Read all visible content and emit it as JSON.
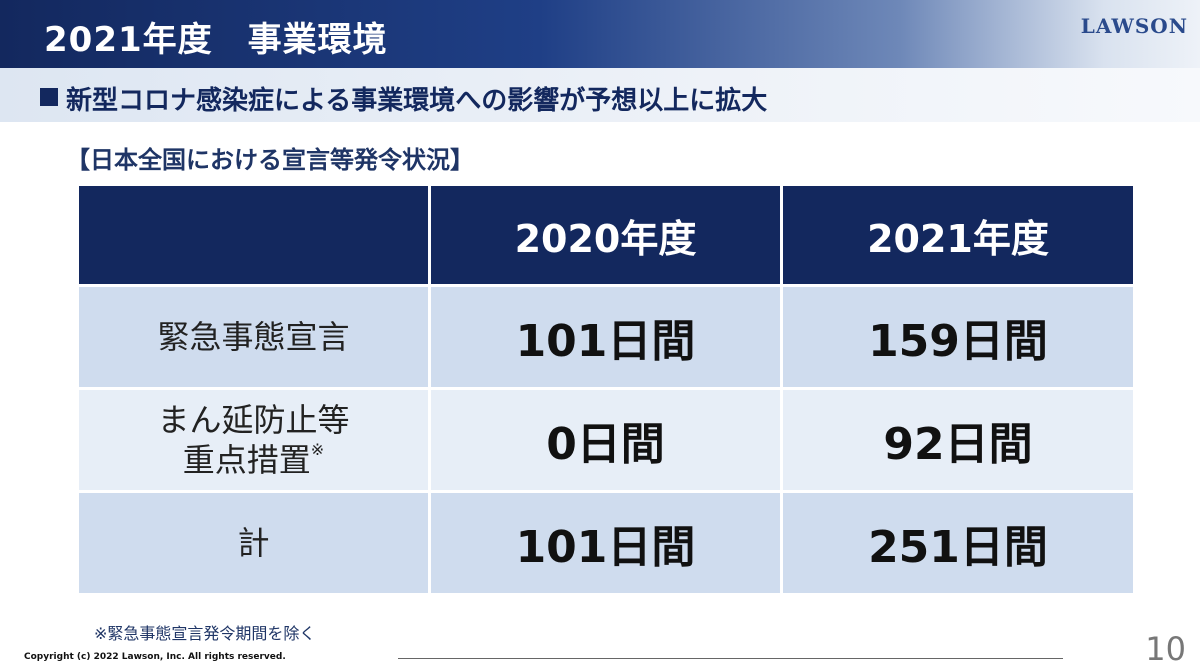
{
  "header": {
    "title": "2021年度　事業環境",
    "logo": "LAWSON"
  },
  "subheader": {
    "title": "新型コロナ感染症による事業環境への影響が予想以上に拡大"
  },
  "section_label": "【日本全国における宣言等発令状況】",
  "table": {
    "columns": [
      "",
      "2020年度",
      "2021年度"
    ],
    "rows": [
      {
        "label": "緊急事態宣言",
        "values": [
          "101日間",
          "159日間"
        ]
      },
      {
        "label_line1": "まん延防止等",
        "label_line2": "重点措置",
        "label_mark": "※",
        "values": [
          "0日間",
          "92日間"
        ]
      },
      {
        "label": "計",
        "values": [
          "101日間",
          "251日間"
        ]
      }
    ]
  },
  "footnote": "※緊急事態宣言発令期間を除く",
  "copyright": "Copyright (c) 2022 Lawson, Inc.  All rights reserved.",
  "page_number": "10",
  "colors": {
    "navy": "#13285e",
    "row_dark": "#cfdcee",
    "row_light": "#e7eef7"
  }
}
